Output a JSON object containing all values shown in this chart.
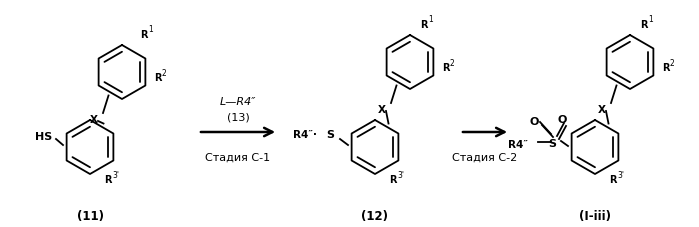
{
  "background_color": "#ffffff",
  "fig_width": 6.99,
  "fig_height": 2.28,
  "dpi": 100,
  "structures": {
    "compound11_label": "(11)",
    "compound12_label": "(12)",
    "compoundIiii_label": "(I-iii)",
    "stage1_label": "Стадия С-1",
    "stage2_label": "Стадия С-2",
    "reagent_label": "L—R4″",
    "reagent_num": "(13)"
  },
  "colors": {
    "line_color": "#000000",
    "text_color": "#000000",
    "bg": "#ffffff"
  }
}
